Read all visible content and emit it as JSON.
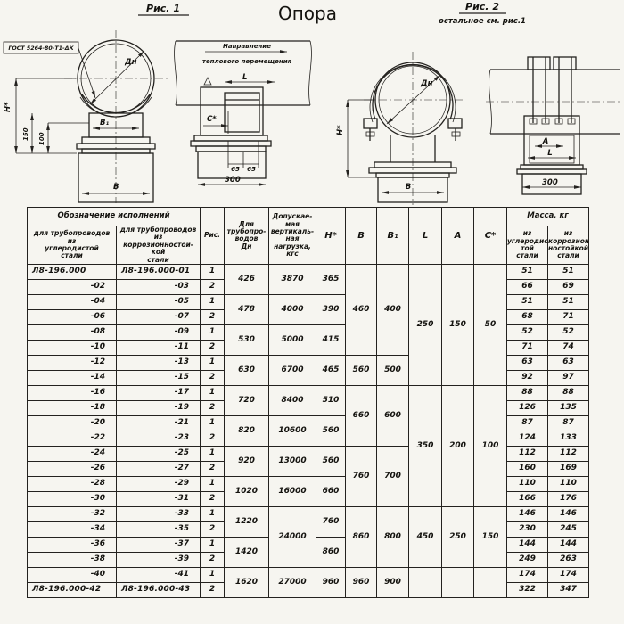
{
  "page": {
    "title": "Опора"
  },
  "figures": {
    "fig1": {
      "caption": "Рис. 1",
      "weld_note": "ГОСТ 5264-80-Т1-ΔК",
      "dn": "Дн",
      "h": "Н*",
      "dim150": "150",
      "dim100": "100",
      "b1": "В₁",
      "b": "В",
      "direction_line1": "Направление",
      "direction_line2": "теплового перемещения",
      "l": "L",
      "c": "С*",
      "dim65a": "65",
      "dim65b": "65",
      "dim300": "300"
    },
    "fig2": {
      "caption": "Рис. 2",
      "note": "остальное см. рис.1",
      "dn": "Дн",
      "h": "Н*",
      "b": "В",
      "a": "А",
      "l": "L",
      "dim300": "300"
    }
  },
  "table": {
    "header": {
      "designation_group": "Обозначение исполнений",
      "designation_carbon": "для трубопроводов\nиз\nуглеродистой\nстали",
      "designation_corrosion": "для трубопроводов\nиз\nкоррозионностой-\nкой\nстали",
      "fig": "Рис.",
      "dn_line": "Для\nтрубопро-\nводов",
      "dn_symbol": "Дн",
      "load": "Допускае-\nмая\nвертикаль-\nная\nнагрузка,\nкгс",
      "h": "Н*",
      "b": "В",
      "b1": "В₁",
      "l": "L",
      "a": "А",
      "c": "С*",
      "mass_group": "Масса, кг",
      "mass_carbon": "из\nуглеродис-\nтой\nстали",
      "mass_corrosion": "из\nкоррозион-\nностойкой\nстали"
    },
    "rows": [
      {
        "carbon": "Л8-196.000",
        "corr": "Л8-196.000-01",
        "fig": "1",
        "mass_carbon": "51",
        "mass_corr": "51"
      },
      {
        "carbon": "-02",
        "corr": "-03",
        "fig": "2",
        "mass_carbon": "66",
        "mass_corr": "69"
      },
      {
        "carbon": "-04",
        "corr": "-05",
        "fig": "1",
        "mass_carbon": "51",
        "mass_corr": "51"
      },
      {
        "carbon": "-06",
        "corr": "-07",
        "fig": "2",
        "mass_carbon": "68",
        "mass_corr": "71"
      },
      {
        "carbon": "-08",
        "corr": "-09",
        "fig": "1",
        "mass_carbon": "52",
        "mass_corr": "52"
      },
      {
        "carbon": "-10",
        "corr": "-11",
        "fig": "2",
        "mass_carbon": "71",
        "mass_corr": "74"
      },
      {
        "carbon": "-12",
        "corr": "-13",
        "fig": "1",
        "mass_carbon": "63",
        "mass_corr": "63"
      },
      {
        "carbon": "-14",
        "corr": "-15",
        "fig": "2",
        "mass_carbon": "92",
        "mass_corr": "97"
      },
      {
        "carbon": "-16",
        "corr": "-17",
        "fig": "1",
        "mass_carbon": "88",
        "mass_corr": "88"
      },
      {
        "carbon": "-18",
        "corr": "-19",
        "fig": "2",
        "mass_carbon": "126",
        "mass_corr": "135"
      },
      {
        "carbon": "-20",
        "corr": "-21",
        "fig": "1",
        "mass_carbon": "87",
        "mass_corr": "87"
      },
      {
        "carbon": "-22",
        "corr": "-23",
        "fig": "2",
        "mass_carbon": "124",
        "mass_corr": "133"
      },
      {
        "carbon": "-24",
        "corr": "-25",
        "fig": "1",
        "mass_carbon": "112",
        "mass_corr": "112"
      },
      {
        "carbon": "-26",
        "corr": "-27",
        "fig": "2",
        "mass_carbon": "160",
        "mass_corr": "169"
      },
      {
        "carbon": "-28",
        "corr": "-29",
        "fig": "1",
        "mass_carbon": "110",
        "mass_corr": "110"
      },
      {
        "carbon": "-30",
        "corr": "-31",
        "fig": "2",
        "mass_carbon": "166",
        "mass_corr": "176"
      },
      {
        "carbon": "-32",
        "corr": "-33",
        "fig": "1",
        "mass_carbon": "146",
        "mass_corr": "146"
      },
      {
        "carbon": "-34",
        "corr": "-35",
        "fig": "2",
        "mass_carbon": "230",
        "mass_corr": "245"
      },
      {
        "carbon": "-36",
        "corr": "-37",
        "fig": "1",
        "mass_carbon": "144",
        "mass_corr": "144"
      },
      {
        "carbon": "-38",
        "corr": "-39",
        "fig": "2",
        "mass_carbon": "249",
        "mass_corr": "263"
      },
      {
        "carbon": "-40",
        "corr": "-41",
        "fig": "1",
        "mass_carbon": "174",
        "mass_corr": "174"
      },
      {
        "carbon": "Л8-196.000-42",
        "corr": "Л8-196.000-43",
        "fig": "2",
        "mass_carbon": "322",
        "mass_corr": "347"
      }
    ],
    "groups": {
      "dn": [
        [
          1,
          2,
          "426"
        ],
        [
          3,
          2,
          "478"
        ],
        [
          5,
          2,
          "530"
        ],
        [
          7,
          2,
          "630"
        ],
        [
          9,
          2,
          "720"
        ],
        [
          11,
          2,
          "820"
        ],
        [
          13,
          2,
          "920"
        ],
        [
          15,
          2,
          "1020"
        ],
        [
          17,
          2,
          "1220"
        ],
        [
          19,
          2,
          "1420"
        ],
        [
          21,
          2,
          "1620"
        ]
      ],
      "load": [
        [
          1,
          2,
          "3870"
        ],
        [
          3,
          2,
          "4000"
        ],
        [
          5,
          2,
          "5000"
        ],
        [
          7,
          2,
          "6700"
        ],
        [
          9,
          2,
          "8400"
        ],
        [
          11,
          2,
          "10600"
        ],
        [
          13,
          2,
          "13000"
        ],
        [
          15,
          2,
          "16000"
        ],
        [
          17,
          4,
          "24000"
        ],
        [
          21,
          2,
          "27000"
        ]
      ],
      "h": [
        [
          1,
          2,
          "365"
        ],
        [
          3,
          2,
          "390"
        ],
        [
          5,
          2,
          "415"
        ],
        [
          7,
          2,
          "465"
        ],
        [
          9,
          2,
          "510"
        ],
        [
          11,
          2,
          "560"
        ],
        [
          13,
          2,
          "560"
        ],
        [
          15,
          2,
          "660"
        ],
        [
          17,
          2,
          "760"
        ],
        [
          19,
          2,
          "860"
        ],
        [
          21,
          2,
          "960"
        ]
      ],
      "b": [
        [
          1,
          6,
          "460"
        ],
        [
          7,
          2,
          "560"
        ],
        [
          9,
          4,
          "660"
        ],
        [
          13,
          4,
          "760"
        ],
        [
          17,
          4,
          "860"
        ],
        [
          21,
          2,
          "960"
        ]
      ],
      "b1": [
        [
          1,
          6,
          "400"
        ],
        [
          7,
          2,
          "500"
        ],
        [
          9,
          4,
          "600"
        ],
        [
          13,
          4,
          "700"
        ],
        [
          17,
          4,
          "800"
        ],
        [
          21,
          2,
          "900"
        ]
      ],
      "l": [
        [
          1,
          8,
          "250"
        ],
        [
          9,
          8,
          "350"
        ],
        [
          17,
          4,
          "450"
        ],
        [
          21,
          2,
          ""
        ]
      ],
      "a": [
        [
          1,
          8,
          "150"
        ],
        [
          9,
          8,
          "200"
        ],
        [
          17,
          4,
          "250"
        ],
        [
          21,
          2,
          ""
        ]
      ],
      "c": [
        [
          1,
          8,
          "50"
        ],
        [
          9,
          8,
          "100"
        ],
        [
          17,
          4,
          "150"
        ],
        [
          21,
          2,
          ""
        ]
      ]
    }
  }
}
